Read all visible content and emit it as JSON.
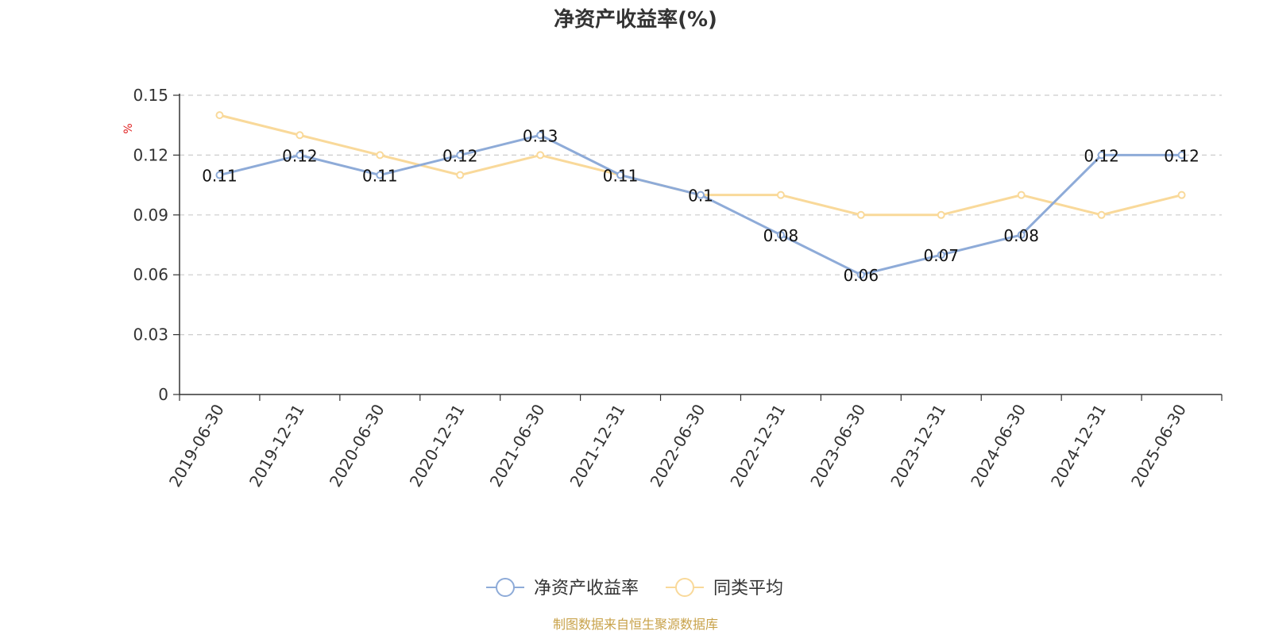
{
  "chart_data": {
    "type": "line",
    "title": "净资产收益率(%)",
    "ylabel": "%",
    "ylim": [
      0,
      0.15
    ],
    "yticks": [
      "0",
      "0.03",
      "0.06",
      "0.09",
      "0.12",
      "0.15"
    ],
    "grid": true,
    "legend_position": "bottom-center",
    "categories": [
      "2019-06-30",
      "2019-12-31",
      "2020-06-30",
      "2020-12-31",
      "2021-06-30",
      "2021-12-31",
      "2022-06-30",
      "2022-12-31",
      "2023-06-30",
      "2023-12-31",
      "2024-06-30",
      "2024-12-31",
      "2025-06-30"
    ],
    "series": [
      {
        "name": "净资产收益率",
        "color": "#8eabd8",
        "values": [
          0.11,
          0.12,
          0.11,
          0.12,
          0.13,
          0.11,
          0.1,
          0.08,
          0.06,
          0.07,
          0.08,
          0.12,
          0.12
        ],
        "labels": [
          "0.11",
          "0.12",
          "0.11",
          "0.12",
          "0.13",
          "0.11",
          "0.1",
          "0.08",
          "0.06",
          "0.07",
          "0.08",
          "0.12",
          "0.12"
        ]
      },
      {
        "name": "同类平均",
        "color": "#f9d99a",
        "values": [
          0.14,
          0.13,
          0.12,
          0.11,
          0.12,
          0.11,
          0.1,
          0.1,
          0.09,
          0.09,
          0.1,
          0.09,
          0.1
        ]
      }
    ],
    "source": "制图数据来自恒生聚源数据库"
  }
}
